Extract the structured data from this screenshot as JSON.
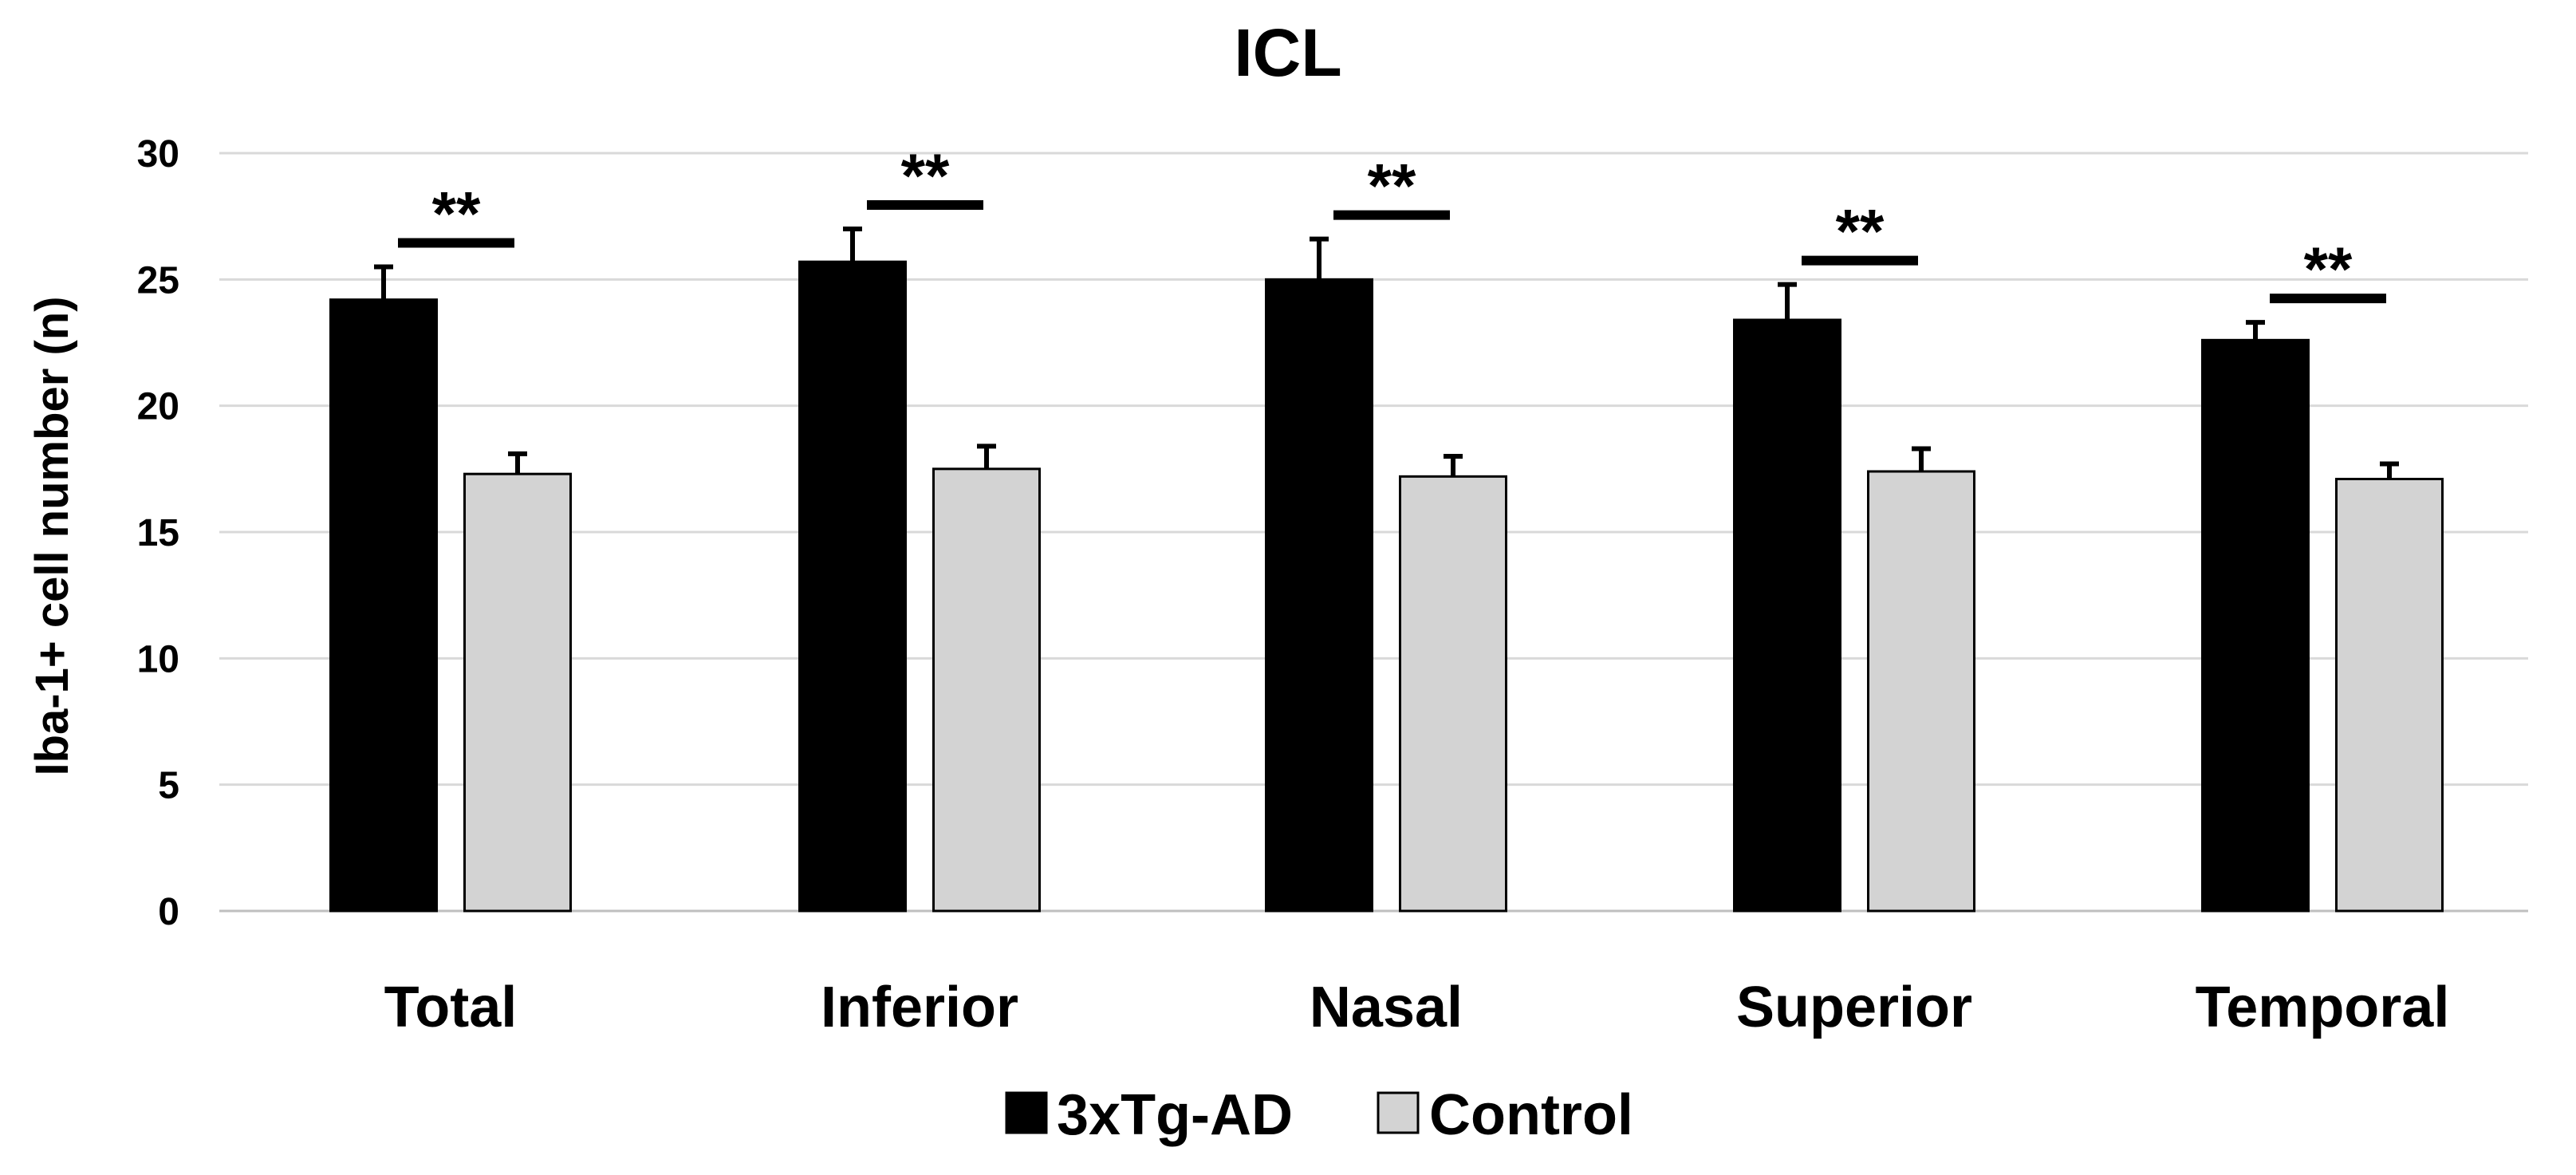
{
  "chart_data": {
    "type": "bar",
    "title": "ICL",
    "xlabel": "",
    "ylabel": "Iba-1+ cell number (n)",
    "ylim": [
      0,
      30
    ],
    "yticks": [
      0,
      5,
      10,
      15,
      20,
      25,
      30
    ],
    "grid": true,
    "legend_position": "bottom",
    "categories": [
      "Total",
      "Inferior",
      "Nasal",
      "Superior",
      "Temporal"
    ],
    "series": [
      {
        "name": "3xTg-AD",
        "color": "#000000",
        "values": [
          24.2,
          25.7,
          25.0,
          23.4,
          22.6
        ],
        "errors": [
          1.3,
          1.3,
          1.6,
          1.4,
          0.7
        ]
      },
      {
        "name": "Control",
        "color": "#d3d3d3",
        "values": [
          17.3,
          17.5,
          17.2,
          17.4,
          17.1
        ],
        "errors": [
          0.8,
          0.9,
          0.8,
          0.9,
          0.6
        ]
      }
    ],
    "significance": [
      "**",
      "**",
      "**",
      "**",
      "**"
    ]
  }
}
